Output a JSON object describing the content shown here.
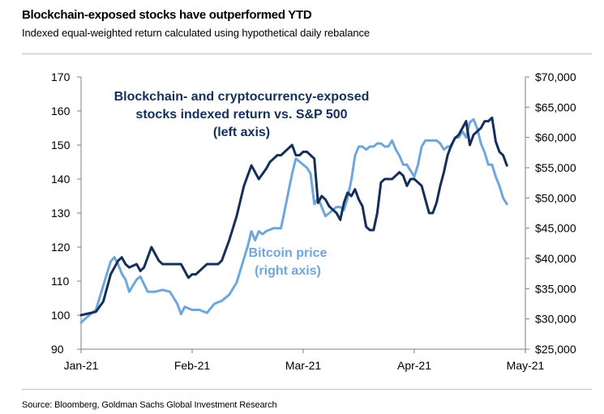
{
  "header": {
    "title": "Blockchain-exposed stocks have outperformed YTD",
    "subtitle": "Indexed equal-weighted return calculated using hypothetical daily rebalance"
  },
  "footer": {
    "source": "Source: Bloomberg, Goldman Sachs Global Investment Research"
  },
  "colors": {
    "blockchain": "#14305a",
    "bitcoin": "#6fa6dc",
    "axis": "#7f7f7f"
  },
  "chart_data": {
    "type": "line",
    "title": "Blockchain-exposed stocks have outperformed YTD",
    "x_ticks": [
      "Jan-21",
      "Feb-21",
      "Mar-21",
      "Apr-21",
      "May-21"
    ],
    "xlim_days": [
      0,
      120
    ],
    "y_left": {
      "lim": [
        90,
        170
      ],
      "ticks": [
        "90",
        "100",
        "110",
        "120",
        "130",
        "140",
        "150",
        "160",
        "170"
      ]
    },
    "y_right": {
      "lim": [
        25000,
        70000
      ],
      "ticks": [
        "$25,000",
        "$30,000",
        "$35,000",
        "$40,000",
        "$45,000",
        "$50,000",
        "$55,000",
        "$60,000",
        "$65,000",
        "$70,000"
      ]
    },
    "annotations": {
      "blockchain": [
        "Blockchain- and cryptocurrency-exposed",
        "stocks indexed return vs. S&P 500",
        "(left axis)"
      ],
      "bitcoin": [
        "Bitcoin price",
        "(right axis)"
      ]
    },
    "series": [
      {
        "name": "Blockchain- and cryptocurrency-exposed stocks indexed return vs. S&P 500",
        "axis": "left",
        "x": [
          0,
          4,
          6,
          8,
          10,
          11,
          12,
          13,
          15,
          16,
          17,
          18,
          19,
          21,
          22,
          24,
          26,
          27,
          29,
          30,
          31,
          33,
          34,
          35,
          37,
          38,
          40,
          42,
          44,
          46,
          48,
          50,
          51,
          52,
          53,
          54,
          55,
          56,
          57,
          58,
          59,
          60,
          61,
          62,
          63,
          64,
          65,
          66,
          67,
          68,
          69,
          70,
          71,
          72,
          73,
          74,
          75,
          76,
          77,
          78,
          79,
          80,
          81,
          82,
          83,
          84,
          85,
          86,
          87,
          88,
          89,
          90,
          91,
          92,
          93,
          94,
          95,
          96,
          97,
          98,
          99,
          100,
          101,
          102,
          103,
          104,
          105,
          106,
          107,
          108,
          109,
          110,
          111,
          112,
          113,
          114,
          115
        ],
        "values": [
          100,
          101,
          104,
          112,
          116,
          117,
          115,
          114,
          115,
          113,
          114,
          117,
          120,
          116,
          115,
          115,
          115,
          115,
          111,
          112,
          112,
          114,
          115,
          115,
          115,
          116,
          122,
          129,
          138,
          144,
          140,
          143,
          145,
          146,
          147,
          147,
          148,
          149,
          150,
          147,
          147,
          148,
          148,
          147,
          146,
          133,
          135,
          134,
          132,
          131,
          130,
          128,
          133,
          136,
          135,
          137,
          134,
          132,
          126,
          125,
          125,
          130,
          139,
          140,
          140,
          140,
          141,
          142,
          141,
          138,
          140,
          140,
          139,
          138,
          134,
          130,
          130,
          133,
          138,
          142,
          147,
          150,
          152,
          153,
          155,
          157,
          150,
          153,
          154,
          155,
          157,
          157,
          158,
          151,
          148,
          147,
          144
        ]
      },
      {
        "name": "Bitcoin price",
        "axis": "right",
        "x": [
          0,
          2,
          4,
          6,
          8,
          9,
          10,
          11,
          12,
          13,
          14,
          15,
          16,
          18,
          20,
          22,
          24,
          26,
          27,
          28,
          30,
          32,
          34,
          36,
          38,
          40,
          42,
          43,
          44,
          45,
          46,
          47,
          48,
          49,
          50,
          52,
          54,
          55,
          56,
          57,
          58,
          59,
          60,
          61,
          62,
          63,
          64,
          65,
          66,
          67,
          68,
          69,
          70,
          71,
          72,
          73,
          74,
          75,
          76,
          77,
          78,
          79,
          80,
          81,
          82,
          83,
          84,
          85,
          86,
          87,
          88,
          89,
          90,
          91,
          92,
          93,
          94,
          95,
          96,
          97,
          98,
          99,
          100,
          101,
          102,
          103,
          104,
          105,
          106,
          107,
          108,
          109,
          110,
          111,
          112,
          113,
          114,
          115
        ],
        "values": [
          29400,
          30500,
          31500,
          35500,
          39500,
          40200,
          39000,
          37500,
          36500,
          34500,
          35500,
          36500,
          37000,
          34500,
          34500,
          34800,
          34500,
          32500,
          30800,
          32000,
          31500,
          31500,
          31000,
          32500,
          33000,
          34000,
          36000,
          38000,
          40000,
          42000,
          44500,
          43000,
          44500,
          44000,
          44500,
          45000,
          45000,
          48000,
          51000,
          54000,
          56500,
          56000,
          55500,
          55000,
          54000,
          49000,
          50000,
          48500,
          47000,
          47500,
          48000,
          48500,
          48500,
          48000,
          50000,
          53000,
          57000,
          58500,
          58500,
          58000,
          58500,
          58500,
          59000,
          59000,
          58500,
          58500,
          59500,
          58000,
          57000,
          55500,
          55500,
          54500,
          53500,
          55500,
          58500,
          59500,
          59500,
          59500,
          59500,
          59000,
          58000,
          58500,
          58500,
          60000,
          60000,
          61000,
          60000,
          62500,
          63000,
          61500,
          59000,
          57500,
          55500,
          55500,
          53500,
          52000,
          50000,
          49000
        ]
      }
    ]
  }
}
